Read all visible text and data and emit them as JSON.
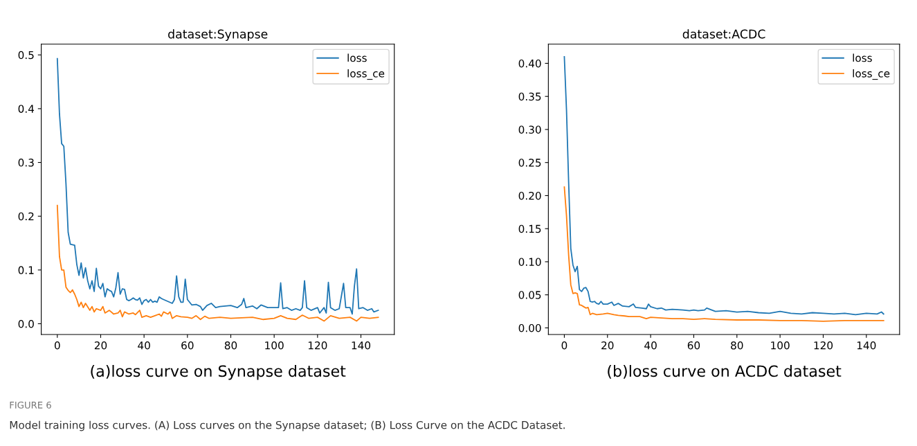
{
  "chart_data": [
    {
      "type": "line",
      "title": "dataset:Synapse",
      "xlim": [
        -7.4,
        155.4
      ],
      "ylim": [
        -0.02,
        0.52
      ],
      "xticks": [
        0,
        20,
        40,
        60,
        80,
        100,
        120,
        140
      ],
      "yticks": [
        {
          "value": 0,
          "label": "0.0"
        },
        {
          "value": 0.1,
          "label": "0.1"
        },
        {
          "value": 0.2,
          "label": "0.2"
        },
        {
          "value": 0.3,
          "label": "0.3"
        },
        {
          "value": 0.4,
          "label": "0.4"
        },
        {
          "value": 0.5,
          "label": "0.5"
        }
      ],
      "legend": "top right",
      "grid": false,
      "line_style": "solid",
      "marker": "none",
      "annotations": [
        "(a)loss curve on Synapse dataset",
        "FIGURE 6",
        "Model training loss curves. (A) Loss curves on the Synapse dataset; (B) Loss Curve on the ACDC Dataset."
      ],
      "series": [
        {
          "name": "loss",
          "color": "#1f77b4",
          "x": [
            0,
            1,
            2,
            3,
            4,
            5,
            6,
            7,
            8,
            9,
            10,
            11,
            12,
            13,
            14,
            15,
            16,
            17,
            18,
            19,
            20,
            21,
            22,
            23,
            24,
            25,
            26,
            27,
            28,
            29,
            30,
            31,
            32,
            33,
            34,
            35,
            36,
            37,
            38,
            39,
            40,
            41,
            42,
            43,
            44,
            45,
            46,
            47,
            48,
            49,
            53,
            54,
            55,
            56,
            57,
            58,
            59,
            60,
            62,
            64,
            66,
            67,
            69,
            71,
            73,
            75,
            80,
            83,
            85,
            86,
            87,
            90,
            92,
            94,
            97,
            100,
            102,
            103,
            104,
            106,
            108,
            110,
            112,
            113,
            114,
            115,
            117,
            120,
            121,
            123,
            124,
            125,
            126,
            128,
            130,
            132,
            133,
            135,
            136,
            137,
            138,
            139,
            141,
            143,
            145,
            146,
            148
          ],
          "values": [
            0.493,
            0.39,
            0.335,
            0.33,
            0.26,
            0.17,
            0.148,
            0.147,
            0.146,
            0.11,
            0.09,
            0.113,
            0.085,
            0.104,
            0.08,
            0.065,
            0.08,
            0.06,
            0.103,
            0.07,
            0.065,
            0.075,
            0.05,
            0.065,
            0.062,
            0.06,
            0.05,
            0.067,
            0.095,
            0.055,
            0.065,
            0.064,
            0.045,
            0.043,
            0.045,
            0.048,
            0.045,
            0.044,
            0.048,
            0.036,
            0.043,
            0.045,
            0.04,
            0.045,
            0.04,
            0.042,
            0.04,
            0.05,
            0.047,
            0.045,
            0.038,
            0.045,
            0.089,
            0.05,
            0.04,
            0.04,
            0.083,
            0.045,
            0.035,
            0.036,
            0.032,
            0.025,
            0.034,
            0.038,
            0.03,
            0.032,
            0.034,
            0.03,
            0.036,
            0.047,
            0.03,
            0.033,
            0.028,
            0.035,
            0.03,
            0.03,
            0.03,
            0.076,
            0.028,
            0.03,
            0.025,
            0.028,
            0.025,
            0.03,
            0.08,
            0.03,
            0.025,
            0.03,
            0.02,
            0.03,
            0.02,
            0.077,
            0.03,
            0.025,
            0.028,
            0.075,
            0.03,
            0.03,
            0.018,
            0.07,
            0.102,
            0.028,
            0.03,
            0.025,
            0.028,
            0.022,
            0.025
          ]
        },
        {
          "name": "loss_ce",
          "color": "#ff7f0e",
          "x": [
            0,
            1,
            2,
            3,
            4,
            5,
            6,
            7,
            8,
            9,
            10,
            11,
            12,
            13,
            15,
            16,
            17,
            18,
            20,
            21,
            22,
            24,
            26,
            28,
            29,
            30,
            31,
            33,
            35,
            36,
            38,
            39,
            41,
            43,
            45,
            47,
            48,
            49,
            51,
            52,
            53,
            55,
            57,
            60,
            62,
            64,
            66,
            68,
            70,
            75,
            80,
            85,
            90,
            95,
            100,
            103,
            106,
            110,
            113,
            116,
            120,
            123,
            126,
            130,
            135,
            138,
            140,
            144,
            148
          ],
          "values": [
            0.22,
            0.125,
            0.1,
            0.1,
            0.068,
            0.062,
            0.058,
            0.063,
            0.055,
            0.045,
            0.032,
            0.04,
            0.03,
            0.038,
            0.025,
            0.032,
            0.022,
            0.028,
            0.025,
            0.032,
            0.02,
            0.025,
            0.018,
            0.02,
            0.025,
            0.013,
            0.022,
            0.018,
            0.02,
            0.017,
            0.025,
            0.012,
            0.015,
            0.012,
            0.015,
            0.018,
            0.014,
            0.022,
            0.018,
            0.022,
            0.01,
            0.015,
            0.013,
            0.012,
            0.01,
            0.015,
            0.008,
            0.014,
            0.01,
            0.012,
            0.01,
            0.011,
            0.012,
            0.008,
            0.01,
            0.015,
            0.01,
            0.008,
            0.016,
            0.01,
            0.012,
            0.005,
            0.015,
            0.01,
            0.012,
            0.005,
            0.012,
            0.01,
            0.012
          ]
        }
      ]
    },
    {
      "type": "line",
      "title": "dataset:ACDC",
      "xlim": [
        -7.4,
        155.4
      ],
      "ylim": [
        -0.01,
        0.429
      ],
      "xticks": [
        0,
        20,
        40,
        60,
        80,
        100,
        120,
        140
      ],
      "yticks": [
        {
          "value": 0,
          "label": "0.00"
        },
        {
          "value": 0.05,
          "label": "0.05"
        },
        {
          "value": 0.1,
          "label": "0.10"
        },
        {
          "value": 0.15,
          "label": "0.15"
        },
        {
          "value": 0.2,
          "label": "0.20"
        },
        {
          "value": 0.25,
          "label": "0.25"
        },
        {
          "value": 0.3,
          "label": "0.30"
        },
        {
          "value": 0.35,
          "label": "0.35"
        },
        {
          "value": 0.4,
          "label": "0.40"
        }
      ],
      "legend": "top right",
      "grid": false,
      "line_style": "solid",
      "marker": "none",
      "annotations": [
        "(b)loss curve on ACDC dataset"
      ],
      "series": [
        {
          "name": "loss",
          "color": "#1f77b4",
          "x": [
            0,
            1,
            2,
            3,
            4,
            5,
            6,
            7,
            8,
            9,
            10,
            11,
            12,
            13,
            14,
            15,
            16,
            17,
            18,
            20,
            22,
            23,
            25,
            27,
            30,
            32,
            33,
            36,
            38,
            39,
            40,
            43,
            45,
            47,
            50,
            55,
            58,
            60,
            62,
            65,
            66,
            70,
            75,
            80,
            85,
            90,
            95,
            100,
            105,
            110,
            115,
            120,
            125,
            130,
            135,
            140,
            145,
            147,
            148
          ],
          "values": [
            0.41,
            0.33,
            0.22,
            0.12,
            0.095,
            0.085,
            0.093,
            0.058,
            0.055,
            0.06,
            0.061,
            0.055,
            0.04,
            0.039,
            0.04,
            0.037,
            0.036,
            0.04,
            0.036,
            0.036,
            0.039,
            0.034,
            0.037,
            0.033,
            0.032,
            0.036,
            0.031,
            0.03,
            0.029,
            0.036,
            0.032,
            0.029,
            0.03,
            0.027,
            0.028,
            0.027,
            0.026,
            0.027,
            0.026,
            0.027,
            0.03,
            0.025,
            0.026,
            0.024,
            0.025,
            0.023,
            0.022,
            0.025,
            0.022,
            0.021,
            0.023,
            0.022,
            0.021,
            0.022,
            0.02,
            0.022,
            0.021,
            0.024,
            0.021
          ]
        },
        {
          "name": "loss_ce",
          "color": "#ff7f0e",
          "x": [
            0,
            1,
            2,
            3,
            4,
            5,
            6,
            7,
            8,
            9,
            10,
            11,
            12,
            13,
            15,
            18,
            20,
            23,
            25,
            28,
            30,
            35,
            38,
            40,
            45,
            50,
            55,
            60,
            65,
            70,
            80,
            90,
            100,
            110,
            120,
            130,
            140,
            148
          ],
          "values": [
            0.213,
            0.17,
            0.11,
            0.065,
            0.052,
            0.053,
            0.052,
            0.035,
            0.034,
            0.032,
            0.03,
            0.031,
            0.02,
            0.022,
            0.02,
            0.021,
            0.022,
            0.02,
            0.019,
            0.018,
            0.017,
            0.017,
            0.014,
            0.016,
            0.015,
            0.014,
            0.014,
            0.013,
            0.014,
            0.013,
            0.012,
            0.012,
            0.011,
            0.011,
            0.01,
            0.011,
            0.011,
            0.011
          ]
        }
      ]
    }
  ]
}
